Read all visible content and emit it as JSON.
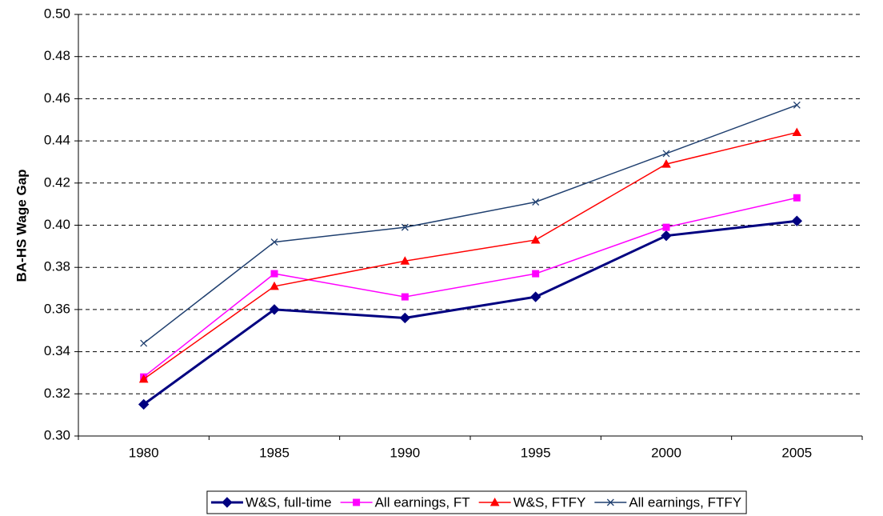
{
  "chart_data": {
    "type": "line",
    "y_label": "BA-HS Wage Gap",
    "categories": [
      "1980",
      "1985",
      "1990",
      "1995",
      "2000",
      "2005"
    ],
    "series": [
      {
        "name": "W&S, full-time",
        "color": "#000080",
        "marker": "diamond",
        "values": [
          0.315,
          0.36,
          0.356,
          0.366,
          0.395,
          0.402
        ]
      },
      {
        "name": "All earnings, FT",
        "color": "#ff00ff",
        "marker": "square",
        "values": [
          0.328,
          0.377,
          0.366,
          0.377,
          0.399,
          0.413
        ]
      },
      {
        "name": "W&S, FTFY",
        "color": "#ff0000",
        "marker": "triangle",
        "values": [
          0.327,
          0.371,
          0.383,
          0.393,
          0.429,
          0.444
        ]
      },
      {
        "name": "All earnings, FTFY",
        "color": "#1f3f6f",
        "marker": "x",
        "values": [
          0.344,
          0.392,
          0.399,
          0.411,
          0.434,
          0.457
        ]
      }
    ],
    "ylim": [
      0.3,
      0.5
    ],
    "yticks": [
      {
        "value": 0.3,
        "label": "0.30"
      },
      0.32,
      0.34,
      0.36,
      0.38,
      {
        "value": 0.4,
        "label": "0.40"
      },
      0.42,
      0.44,
      0.46,
      0.48,
      {
        "value": 0.5,
        "label": "0.50"
      }
    ],
    "grid": true,
    "legend": "bottom"
  }
}
